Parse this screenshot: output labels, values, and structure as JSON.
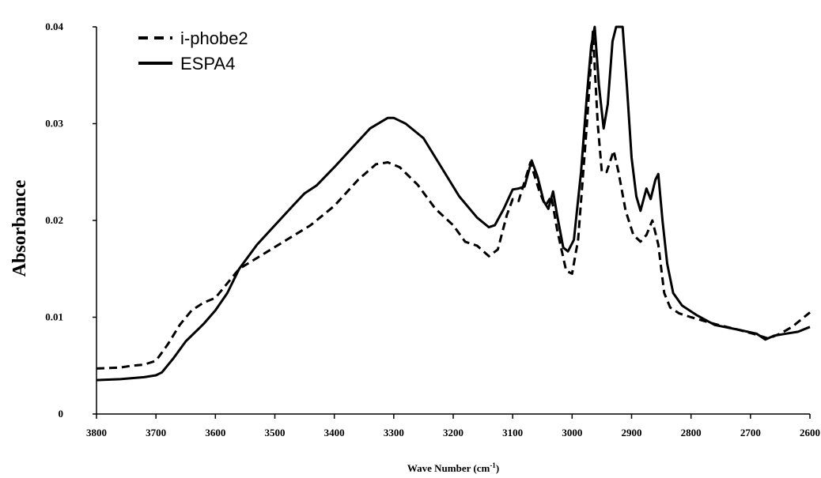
{
  "chart_data": {
    "type": "line",
    "xlabel": "Wave Number (cm",
    "xlabel_sup": "-1",
    "xlabel_close": ")",
    "ylabel": "Absorbance",
    "xlim": [
      3800,
      2600
    ],
    "ylim": [
      0,
      0.04
    ],
    "x_ticks": [
      "3800",
      "3700",
      "3600",
      "3500",
      "3400",
      "3300",
      "3200",
      "3100",
      "3000",
      "2900",
      "2800",
      "2700",
      "2600"
    ],
    "y_ticks": [
      "0",
      "0.01",
      "0.02",
      "0.03",
      "0.04"
    ],
    "grid": false,
    "legend_position": "top-left",
    "series": [
      {
        "name": "i-phobe2",
        "style": "dashed",
        "color": "#000000",
        "points": [
          [
            3800,
            0.0047
          ],
          [
            3760,
            0.0048
          ],
          [
            3740,
            0.005
          ],
          [
            3720,
            0.0051
          ],
          [
            3700,
            0.0055
          ],
          [
            3680,
            0.0072
          ],
          [
            3660,
            0.0092
          ],
          [
            3640,
            0.0107
          ],
          [
            3620,
            0.0115
          ],
          [
            3600,
            0.012
          ],
          [
            3580,
            0.0135
          ],
          [
            3560,
            0.015
          ],
          [
            3520,
            0.0165
          ],
          [
            3480,
            0.018
          ],
          [
            3440,
            0.0195
          ],
          [
            3400,
            0.0215
          ],
          [
            3360,
            0.0242
          ],
          [
            3330,
            0.0258
          ],
          [
            3310,
            0.026
          ],
          [
            3290,
            0.0255
          ],
          [
            3260,
            0.0237
          ],
          [
            3230,
            0.0212
          ],
          [
            3200,
            0.0195
          ],
          [
            3180,
            0.0178
          ],
          [
            3160,
            0.0174
          ],
          [
            3140,
            0.0163
          ],
          [
            3125,
            0.017
          ],
          [
            3110,
            0.0205
          ],
          [
            3100,
            0.0222
          ],
          [
            3090,
            0.022
          ],
          [
            3070,
            0.026
          ],
          [
            3055,
            0.023
          ],
          [
            3045,
            0.0215
          ],
          [
            3035,
            0.0225
          ],
          [
            3025,
            0.019
          ],
          [
            3010,
            0.0148
          ],
          [
            3000,
            0.0145
          ],
          [
            2990,
            0.018
          ],
          [
            2975,
            0.03
          ],
          [
            2965,
            0.0395
          ],
          [
            2957,
            0.03
          ],
          [
            2950,
            0.025
          ],
          [
            2942,
            0.025
          ],
          [
            2930,
            0.0272
          ],
          [
            2922,
            0.025
          ],
          [
            2910,
            0.021
          ],
          [
            2897,
            0.0185
          ],
          [
            2885,
            0.0178
          ],
          [
            2875,
            0.0185
          ],
          [
            2865,
            0.02
          ],
          [
            2855,
            0.0175
          ],
          [
            2845,
            0.0125
          ],
          [
            2835,
            0.011
          ],
          [
            2820,
            0.0104
          ],
          [
            2800,
            0.01
          ],
          [
            2760,
            0.0093
          ],
          [
            2720,
            0.0087
          ],
          [
            2690,
            0.0082
          ],
          [
            2670,
            0.0078
          ],
          [
            2650,
            0.0083
          ],
          [
            2630,
            0.009
          ],
          [
            2600,
            0.0105
          ]
        ]
      },
      {
        "name": "ESPA4",
        "style": "solid",
        "color": "#000000",
        "points": [
          [
            3800,
            0.0035
          ],
          [
            3760,
            0.0036
          ],
          [
            3720,
            0.0038
          ],
          [
            3700,
            0.004
          ],
          [
            3690,
            0.0043
          ],
          [
            3670,
            0.0058
          ],
          [
            3650,
            0.0075
          ],
          [
            3620,
            0.0093
          ],
          [
            3600,
            0.0107
          ],
          [
            3580,
            0.0125
          ],
          [
            3560,
            0.015
          ],
          [
            3530,
            0.0175
          ],
          [
            3500,
            0.0195
          ],
          [
            3470,
            0.0215
          ],
          [
            3450,
            0.0228
          ],
          [
            3430,
            0.0236
          ],
          [
            3400,
            0.0255
          ],
          [
            3370,
            0.0275
          ],
          [
            3340,
            0.0295
          ],
          [
            3310,
            0.0306
          ],
          [
            3300,
            0.0306
          ],
          [
            3280,
            0.03
          ],
          [
            3250,
            0.0285
          ],
          [
            3220,
            0.0255
          ],
          [
            3190,
            0.0225
          ],
          [
            3160,
            0.0203
          ],
          [
            3140,
            0.0193
          ],
          [
            3130,
            0.0195
          ],
          [
            3115,
            0.0212
          ],
          [
            3100,
            0.0232
          ],
          [
            3090,
            0.0233
          ],
          [
            3080,
            0.0235
          ],
          [
            3068,
            0.0262
          ],
          [
            3058,
            0.0245
          ],
          [
            3048,
            0.022
          ],
          [
            3040,
            0.0212
          ],
          [
            3032,
            0.023
          ],
          [
            3025,
            0.0205
          ],
          [
            3015,
            0.0172
          ],
          [
            3007,
            0.0168
          ],
          [
            2997,
            0.018
          ],
          [
            2985,
            0.025
          ],
          [
            2975,
            0.033
          ],
          [
            2968,
            0.038
          ],
          [
            2962,
            0.04
          ],
          [
            2955,
            0.034
          ],
          [
            2947,
            0.0295
          ],
          [
            2940,
            0.032
          ],
          [
            2932,
            0.0385
          ],
          [
            2926,
            0.04
          ],
          [
            2915,
            0.04
          ],
          [
            2908,
            0.034
          ],
          [
            2900,
            0.0265
          ],
          [
            2892,
            0.0225
          ],
          [
            2885,
            0.021
          ],
          [
            2875,
            0.0233
          ],
          [
            2868,
            0.0222
          ],
          [
            2860,
            0.0242
          ],
          [
            2855,
            0.0248
          ],
          [
            2848,
            0.02
          ],
          [
            2840,
            0.0155
          ],
          [
            2830,
            0.0125
          ],
          [
            2815,
            0.0112
          ],
          [
            2790,
            0.0102
          ],
          [
            2760,
            0.0092
          ],
          [
            2720,
            0.0087
          ],
          [
            2690,
            0.0083
          ],
          [
            2675,
            0.0077
          ],
          [
            2660,
            0.0081
          ],
          [
            2640,
            0.0083
          ],
          [
            2620,
            0.0085
          ],
          [
            2600,
            0.009
          ]
        ]
      }
    ]
  }
}
